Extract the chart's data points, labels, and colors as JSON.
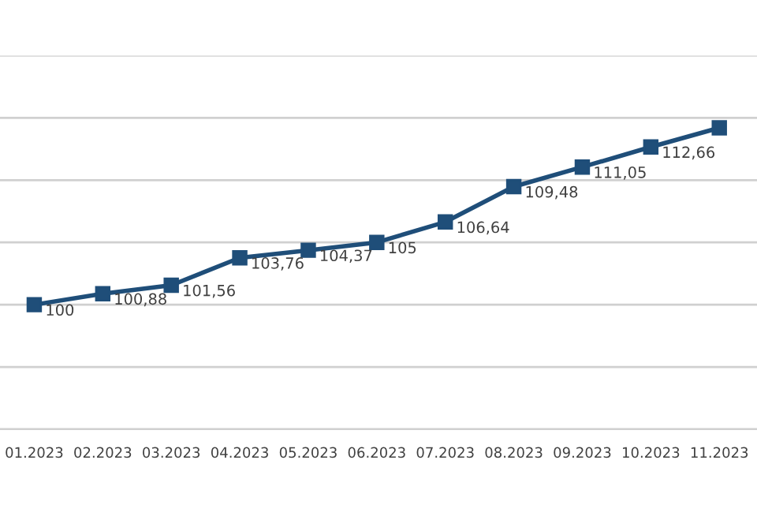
{
  "chart_data": {
    "type": "line",
    "categories": [
      "01.2023",
      "02.2023",
      "03.2023",
      "04.2023",
      "05.2023",
      "06.2023",
      "07.2023",
      "08.2023",
      "09.2023",
      "10.2023",
      "11.2023"
    ],
    "series": [
      {
        "color": "#1f4e79",
        "values": [
          100,
          100.88,
          101.56,
          103.76,
          104.37,
          105,
          106.64,
          109.48,
          111.05,
          112.66,
          114.2
        ],
        "value_labels": [
          "100",
          "100,88",
          "101,56",
          "103,76",
          "104,37",
          "105",
          "106,64",
          "109,48",
          "111,05",
          "112,66",
          null
        ]
      }
    ],
    "marker": "square",
    "ylim": [
      90,
      120
    ],
    "yticks": [
      {
        "value": 90,
        "label": null
      },
      {
        "value": 95,
        "label": null
      },
      {
        "value": 100,
        "label": null
      },
      {
        "value": 105,
        "label": null
      },
      {
        "value": 110,
        "label": null
      },
      {
        "value": 115,
        "label": null
      },
      {
        "value": 120,
        "label": null
      }
    ],
    "grid": "y",
    "tick_labels": "x",
    "legend": false
  }
}
